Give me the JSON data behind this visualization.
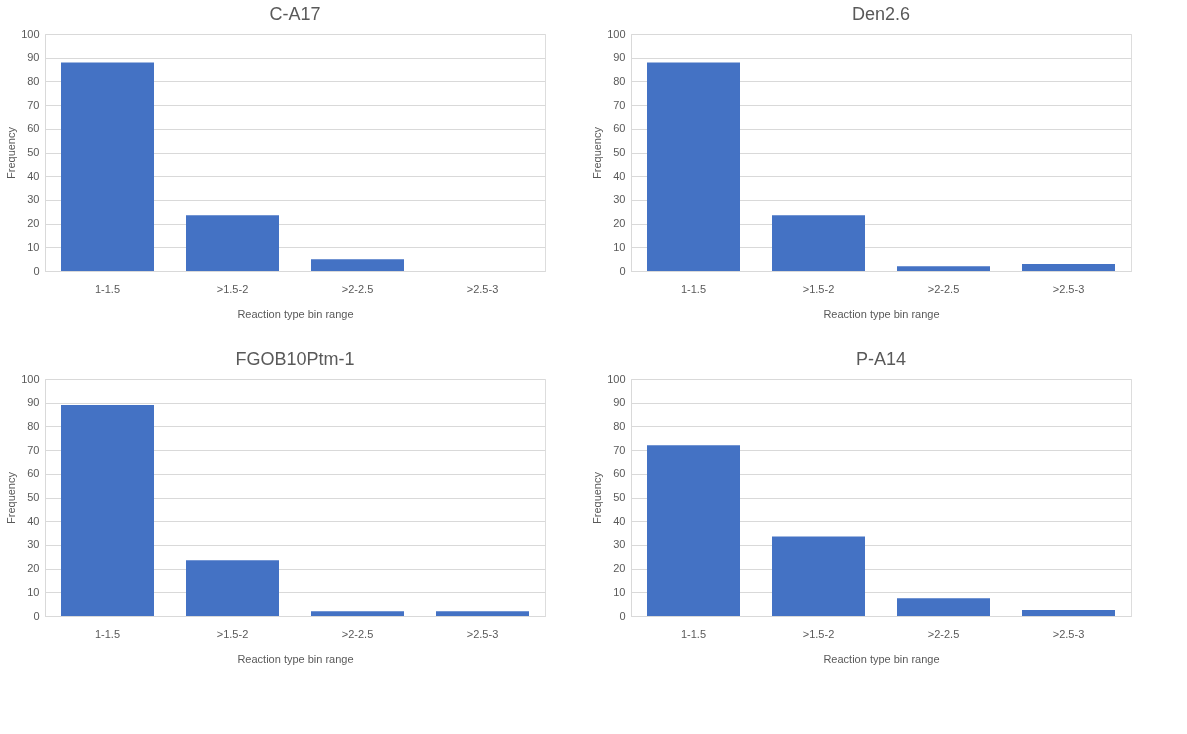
{
  "chart_data": [
    {
      "type": "bar",
      "title": "C-A17",
      "categories": [
        "1-1.5",
        ">1.5-2",
        ">2-2.5",
        ">2.5-3"
      ],
      "values": [
        88,
        23.5,
        5,
        0
      ],
      "color": "#4472c4",
      "xlabel": "Reaction type bin range",
      "ylabel": "Frequency",
      "ylim": [
        0,
        100
      ],
      "yticks": [
        0,
        10,
        20,
        30,
        40,
        50,
        60,
        70,
        80,
        90,
        100
      ],
      "grid": "y"
    },
    {
      "type": "bar",
      "title": "Den2.6",
      "categories": [
        "1-1.5",
        ">1.5-2",
        ">2-2.5",
        ">2.5-3"
      ],
      "values": [
        88,
        23.5,
        2,
        3
      ],
      "color": "#4472c4",
      "xlabel": "Reaction type bin range",
      "ylabel": "Frequency",
      "ylim": [
        0,
        100
      ],
      "yticks": [
        0,
        10,
        20,
        30,
        40,
        50,
        60,
        70,
        80,
        90,
        100
      ],
      "grid": "y"
    },
    {
      "type": "bar",
      "title": "FGOB10Ptm-1",
      "categories": [
        "1-1.5",
        ">1.5-2",
        ">2-2.5",
        ">2.5-3"
      ],
      "values": [
        89,
        23.5,
        2,
        2
      ],
      "color": "#4472c4",
      "xlabel": "Reaction type bin range",
      "ylabel": "Frequency",
      "ylim": [
        0,
        100
      ],
      "yticks": [
        0,
        10,
        20,
        30,
        40,
        50,
        60,
        70,
        80,
        90,
        100
      ],
      "grid": "y"
    },
    {
      "type": "bar",
      "title": "P-A14",
      "categories": [
        "1-1.5",
        ">1.5-2",
        ">2-2.5",
        ">2.5-3"
      ],
      "values": [
        72,
        33.5,
        7.5,
        2.5
      ],
      "color": "#4472c4",
      "xlabel": "Reaction type bin range",
      "ylabel": "Frequency",
      "ylim": [
        0,
        100
      ],
      "yticks": [
        0,
        10,
        20,
        30,
        40,
        50,
        60,
        70,
        80,
        90,
        100
      ],
      "grid": "y"
    }
  ]
}
